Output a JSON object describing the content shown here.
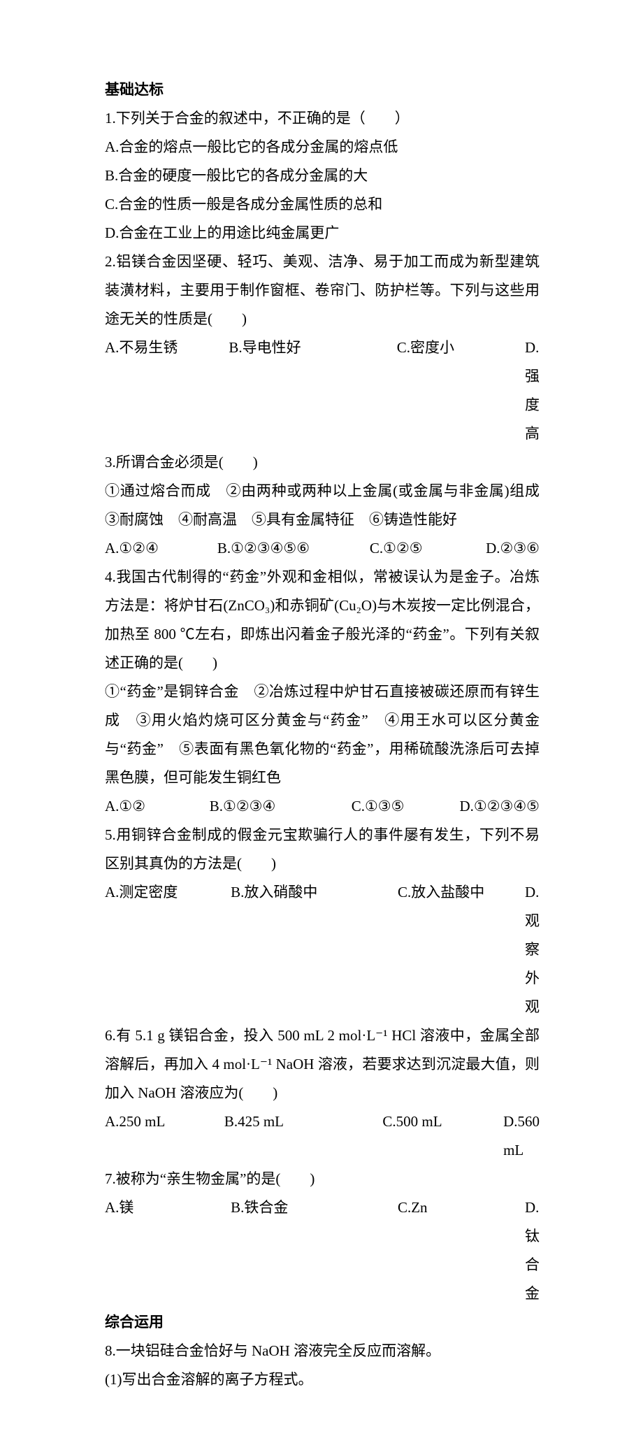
{
  "section1_title": "基础达标",
  "q1_stem": "1.下列关于合金的叙述中，不正确的是（　　）",
  "q1_a": "A.合金的熔点一般比它的各成分金属的熔点低",
  "q1_b": "B.合金的硬度一般比它的各成分金属的大",
  "q1_c": "C.合金的性质一般是各成分金属性质的总和",
  "q1_d": "D.合金在工业上的用途比纯金属更广",
  "q2_stem": "2.铝镁合金因坚硬、轻巧、美观、洁净、易于加工而成为新型建筑装潢材料，主要用于制作窗框、卷帘门、防护栏等。下列与这些用途无关的性质是(　　)",
  "q2_a": "A.不易生锈",
  "q2_b": "B.导电性好",
  "q2_c": "C.密度小",
  "q2_d": "D.强度高",
  "q3_stem": "3.所谓合金必须是(　　)",
  "q3_items": "①通过熔合而成　②由两种或两种以上金属(或金属与非金属)组成　③耐腐蚀　④耐高温　⑤具有金属特征　⑥铸造性能好",
  "q3_a": "A.①②④",
  "q3_b": "B.①②③④⑤⑥",
  "q3_c": "C.①②⑤",
  "q3_d": "D.②③⑥",
  "q4_stem": "4.我国古代制得的“药金”外观和金相似，常被误认为是金子。冶炼方法是：将炉甘石(ZnCO₃)和赤铜矿(Cu₂O)与木炭按一定比例混合，加热至 800 ℃左右，即炼出闪着金子般光泽的“药金”。下列有关叙述正确的是(　　)",
  "q4_items": "①“药金”是铜锌合金　②冶炼过程中炉甘石直接被碳还原而有锌生成　③用火焰灼烧可区分黄金与“药金”　④用王水可以区分黄金与“药金”　⑤表面有黑色氧化物的“药金”，用稀硫酸洗涤后可去掉黑色膜，但可能发生铜红色",
  "q4_a": "A.①②",
  "q4_b": "B.①②③④",
  "q4_c": "C.①③⑤",
  "q4_d": "D.①②③④⑤",
  "q5_stem": "5.用铜锌合金制成的假金元宝欺骗行人的事件屡有发生，下列不易区别其真伪的方法是(　　)",
  "q5_a": "A.测定密度",
  "q5_b": "B.放入硝酸中",
  "q5_c": "C.放入盐酸中",
  "q5_d": "D.观察外观",
  "q6_stem": "6.有 5.1 g 镁铝合金，投入 500 mL 2 mol·L⁻¹ HCl 溶液中，金属全部溶解后，再加入 4 mol·L⁻¹ NaOH 溶液，若要求达到沉淀最大值，则加入 NaOH 溶液应为(　　)",
  "q6_a": "A.250 mL",
  "q6_b": "B.425 mL",
  "q6_c": "C.500 mL",
  "q6_d": "D.560 mL",
  "q7_stem": "7.被称为“亲生物金属”的是(　　)",
  "q7_a": "A.镁",
  "q7_b": "B.铁合金",
  "q7_c": "C.Zn",
  "q7_d": "D.钛合金",
  "section2_title": "综合运用",
  "q8_stem": "8.一块铝硅合金恰好与 NaOH 溶液完全反应而溶解。",
  "q8_sub1": "(1)写出合金溶解的离子方程式。"
}
